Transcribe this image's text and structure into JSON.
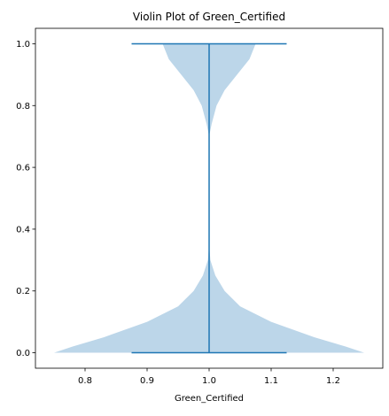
{
  "chart_data": {
    "type": "violin",
    "title": "Violin Plot of Green_Certified",
    "xlabel": "Green_Certified",
    "ylabel": "",
    "xlim": [
      0.72,
      1.28
    ],
    "ylim": [
      -0.05,
      1.05
    ],
    "xticks": [
      "0.8",
      "0.9",
      "1.0",
      "1.1",
      "1.2"
    ],
    "yticks": [
      "0.0",
      "0.2",
      "0.4",
      "0.6",
      "0.8",
      "1.0"
    ],
    "grid": false,
    "violin": {
      "position": 1.0,
      "min": 0.0,
      "max": 1.0,
      "cap_half_width": 0.125,
      "max_half_width": 0.25,
      "density_profile": [
        [
          0.0,
          0.25
        ],
        [
          0.02,
          0.22
        ],
        [
          0.05,
          0.17
        ],
        [
          0.1,
          0.1
        ],
        [
          0.15,
          0.05
        ],
        [
          0.2,
          0.025
        ],
        [
          0.25,
          0.01
        ],
        [
          0.3,
          0.002
        ],
        [
          0.35,
          0.0
        ],
        [
          0.7,
          0.0
        ],
        [
          0.74,
          0.004
        ],
        [
          0.8,
          0.012
        ],
        [
          0.85,
          0.025
        ],
        [
          0.9,
          0.045
        ],
        [
          0.95,
          0.065
        ],
        [
          1.0,
          0.075
        ]
      ],
      "fill_color": "#bcd6e9",
      "line_color": "#1f77b4"
    }
  }
}
